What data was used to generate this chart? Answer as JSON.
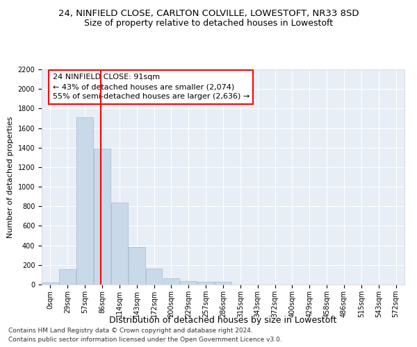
{
  "title_line1": "24, NINFIELD CLOSE, CARLTON COLVILLE, LOWESTOFT, NR33 8SD",
  "title_line2": "Size of property relative to detached houses in Lowestoft",
  "xlabel": "Distribution of detached houses by size in Lowestoft",
  "ylabel": "Number of detached properties",
  "bin_labels": [
    "0sqm",
    "29sqm",
    "57sqm",
    "86sqm",
    "114sqm",
    "143sqm",
    "172sqm",
    "200sqm",
    "229sqm",
    "257sqm",
    "286sqm",
    "315sqm",
    "343sqm",
    "372sqm",
    "400sqm",
    "429sqm",
    "458sqm",
    "486sqm",
    "515sqm",
    "543sqm",
    "572sqm"
  ],
  "bar_values": [
    20,
    155,
    1710,
    1390,
    835,
    385,
    165,
    65,
    38,
    30,
    28,
    0,
    0,
    0,
    0,
    0,
    0,
    0,
    0,
    0,
    0
  ],
  "bar_color": "#c9d9ea",
  "bar_edge_color": "#a0b8d0",
  "vline_x_pos": 2.93,
  "vline_color": "red",
  "annotation_text": "24 NINFIELD CLOSE: 91sqm\n← 43% of detached houses are smaller (2,074)\n55% of semi-detached houses are larger (2,636) →",
  "annotation_box_color": "white",
  "annotation_box_edge": "red",
  "ylim": [
    0,
    2200
  ],
  "yticks": [
    0,
    200,
    400,
    600,
    800,
    1000,
    1200,
    1400,
    1600,
    1800,
    2000,
    2200
  ],
  "background_color": "#e8eef5",
  "footer_line1": "Contains HM Land Registry data © Crown copyright and database right 2024.",
  "footer_line2": "Contains public sector information licensed under the Open Government Licence v3.0.",
  "title_fontsize": 9.5,
  "subtitle_fontsize": 9,
  "ylabel_fontsize": 8,
  "xlabel_fontsize": 9,
  "tick_fontsize": 7,
  "annotation_fontsize": 8,
  "footer_fontsize": 6.5
}
